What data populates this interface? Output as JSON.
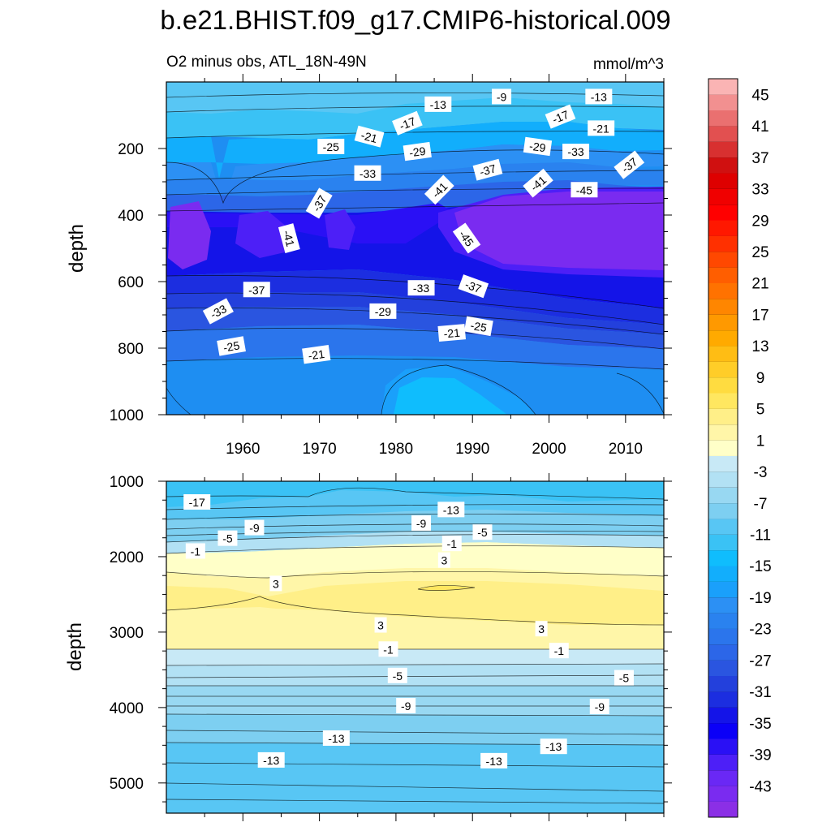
{
  "title": "b.e21.BHIST.f09_g17.CMIP6-historical.009",
  "chart_data": [
    {
      "type": "contour",
      "panel": "upper",
      "subtitle": "O2 minus obs, ATL_18N-49N",
      "units": "mmol/m^3",
      "xlabel": "",
      "ylabel": "depth",
      "xlim": [
        1950,
        2015
      ],
      "ylim": [
        1000,
        0
      ],
      "x_ticks": [
        1960,
        1970,
        1980,
        1990,
        2000,
        2010
      ],
      "x_tick_labels": [
        "1960",
        "1970",
        "1980",
        "1990",
        "2000",
        "2010"
      ],
      "y_ticks": [
        200,
        400,
        600,
        800,
        1000
      ],
      "y_tick_labels": [
        "200",
        "400",
        "600",
        "800",
        "1000"
      ],
      "contour_labels": [
        {
          "text": "-9",
          "x": 1993.8,
          "y": 45,
          "angle": 0
        },
        {
          "text": "-13",
          "x": 1985.5,
          "y": 68,
          "angle": 0
        },
        {
          "text": "-13",
          "x": 2006.5,
          "y": 45,
          "angle": 0
        },
        {
          "text": "-17",
          "x": 1981.5,
          "y": 125,
          "angle": -22
        },
        {
          "text": "-17",
          "x": 2001.5,
          "y": 105,
          "angle": -22
        },
        {
          "text": "-21",
          "x": 1976.5,
          "y": 165,
          "angle": 15
        },
        {
          "text": "-21",
          "x": 2006.8,
          "y": 140,
          "angle": 0
        },
        {
          "text": "-25",
          "x": 1971.5,
          "y": 195,
          "angle": 0
        },
        {
          "text": "-29",
          "x": 1982.8,
          "y": 210,
          "angle": -8
        },
        {
          "text": "-29",
          "x": 1998.5,
          "y": 195,
          "angle": 8
        },
        {
          "text": "-33",
          "x": 1976.3,
          "y": 275,
          "angle": 0
        },
        {
          "text": "-33",
          "x": 2003.5,
          "y": 210,
          "angle": 0
        },
        {
          "text": "-37",
          "x": 1992.0,
          "y": 265,
          "angle": -15
        },
        {
          "text": "-37",
          "x": 2010.5,
          "y": 250,
          "angle": -38
        },
        {
          "text": "-37",
          "x": 1970.0,
          "y": 365,
          "angle": -60
        },
        {
          "text": "-41",
          "x": 1985.7,
          "y": 325,
          "angle": -45
        },
        {
          "text": "-41",
          "x": 1998.6,
          "y": 305,
          "angle": -40
        },
        {
          "text": "-41",
          "x": 1966.0,
          "y": 470,
          "angle": 75
        },
        {
          "text": "-45",
          "x": 2004.6,
          "y": 325,
          "angle": 0
        },
        {
          "text": "-45",
          "x": 1989.2,
          "y": 470,
          "angle": 55
        },
        {
          "text": "-37",
          "x": 1961.8,
          "y": 625,
          "angle": 0
        },
        {
          "text": "-33",
          "x": 1983.3,
          "y": 620,
          "angle": 0
        },
        {
          "text": "-37",
          "x": 1990.1,
          "y": 615,
          "angle": 20
        },
        {
          "text": "-33",
          "x": 1956.8,
          "y": 690,
          "angle": -28
        },
        {
          "text": "-29",
          "x": 1978.3,
          "y": 690,
          "angle": 0
        },
        {
          "text": "-25",
          "x": 1958.5,
          "y": 795,
          "angle": -10
        },
        {
          "text": "-21",
          "x": 1987.3,
          "y": 755,
          "angle": -5
        },
        {
          "text": "-25",
          "x": 1990.8,
          "y": 735,
          "angle": 10
        },
        {
          "text": "-21",
          "x": 1969.6,
          "y": 820,
          "angle": -8
        }
      ]
    },
    {
      "type": "contour",
      "panel": "lower",
      "xlabel": "",
      "ylabel": "depth",
      "xlim": [
        1950,
        2015
      ],
      "ylim": [
        5400,
        1000
      ],
      "y_ticks": [
        1000,
        2000,
        3000,
        4000,
        5000
      ],
      "y_tick_labels": [
        "1000",
        "2000",
        "3000",
        "4000",
        "5000"
      ],
      "contour_labels": [
        {
          "text": "-17",
          "x": 1954.0,
          "y": 1280,
          "angle": 0
        },
        {
          "text": "-9",
          "x": 1961.5,
          "y": 1620,
          "angle": 0
        },
        {
          "text": "-5",
          "x": 1958.0,
          "y": 1760,
          "angle": 0
        },
        {
          "text": "-1",
          "x": 1953.8,
          "y": 1930,
          "angle": 0
        },
        {
          "text": "-13",
          "x": 1987.2,
          "y": 1380,
          "angle": 0
        },
        {
          "text": "-9",
          "x": 1983.3,
          "y": 1560,
          "angle": 0
        },
        {
          "text": "-5",
          "x": 1991.3,
          "y": 1680,
          "angle": 0
        },
        {
          "text": "-1",
          "x": 1987.3,
          "y": 1830,
          "angle": 0
        },
        {
          "text": "3",
          "x": 1986.3,
          "y": 2050,
          "angle": 0
        },
        {
          "text": "3",
          "x": 1964.3,
          "y": 2360,
          "angle": 0
        },
        {
          "text": "3",
          "x": 1978.0,
          "y": 2910,
          "angle": 0
        },
        {
          "text": "3",
          "x": 1999.0,
          "y": 2960,
          "angle": 0
        },
        {
          "text": "-1",
          "x": 1979.0,
          "y": 3230,
          "angle": 0
        },
        {
          "text": "-1",
          "x": 2001.3,
          "y": 3250,
          "angle": 0
        },
        {
          "text": "-5",
          "x": 1980.2,
          "y": 3580,
          "angle": 0
        },
        {
          "text": "-5",
          "x": 2009.8,
          "y": 3610,
          "angle": 0
        },
        {
          "text": "-9",
          "x": 1981.3,
          "y": 3980,
          "angle": 0
        },
        {
          "text": "-9",
          "x": 2006.6,
          "y": 3990,
          "angle": 0
        },
        {
          "text": "-13",
          "x": 1972.2,
          "y": 4410,
          "angle": 0
        },
        {
          "text": "-13",
          "x": 2000.6,
          "y": 4520,
          "angle": 0
        },
        {
          "text": "-13",
          "x": 1963.7,
          "y": 4700,
          "angle": 0
        },
        {
          "text": "-13",
          "x": 1992.8,
          "y": 4710,
          "angle": 0
        }
      ]
    }
  ],
  "colorbar": {
    "levels": [
      -47,
      -45,
      -43,
      -41,
      -39,
      -37,
      -35,
      -33,
      -31,
      -29,
      -27,
      -25,
      -23,
      -21,
      -19,
      -17,
      -15,
      -13,
      -11,
      -9,
      -7,
      -5,
      -3,
      -1,
      1,
      3,
      5,
      7,
      9,
      11,
      13,
      15,
      17,
      19,
      21,
      23,
      25,
      27,
      29,
      31,
      33,
      35,
      37,
      39,
      41,
      43,
      45,
      47
    ],
    "label_values": [
      45,
      41,
      37,
      33,
      29,
      25,
      21,
      17,
      13,
      9,
      5,
      1,
      -3,
      -7,
      -11,
      -15,
      -19,
      -23,
      -27,
      -31,
      -35,
      -39,
      -43
    ],
    "colors": [
      "#8b2fe6",
      "#7a2bf0",
      "#6a28f5",
      "#4d1ff7",
      "#2a10f5",
      "#0b00f7",
      "#1414e8",
      "#1c2ee0",
      "#2340dc",
      "#2a55e0",
      "#2c66e8",
      "#2b75ec",
      "#2a82ef",
      "#2c90f4",
      "#1aa0fb",
      "#12aefc",
      "#0fbdfd",
      "#3ac2f5",
      "#58c6f4",
      "#7dcff1",
      "#98d8f2",
      "#b2e1f4",
      "#c8e9f6",
      "#ffffc8",
      "#fff6a8",
      "#ffef88",
      "#ffe760",
      "#ffdc40",
      "#ffcd28",
      "#ffbd14",
      "#ffaa00",
      "#ff9900",
      "#ff8600",
      "#ff7200",
      "#ff5e00",
      "#ff4800",
      "#ff3000",
      "#ff1800",
      "#ff0000",
      "#f00000",
      "#de0000",
      "#d01010",
      "#d83030",
      "#e25050",
      "#ea7070",
      "#f29090",
      "#fab4b4"
    ]
  }
}
